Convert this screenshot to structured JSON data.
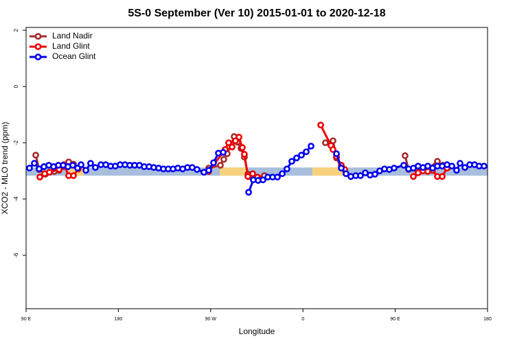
{
  "chart_data": {
    "type": "line",
    "title": "5S-0 September (Ver 10)   2015-01-01 to 2020-12-18",
    "x_label": "Longitude",
    "y_label": "XCO2 - MLO trend (ppm)",
    "xlim": [
      90,
      540
    ],
    "ylim": [
      -7.9,
      2.1
    ],
    "xticks": [
      {
        "value": 90,
        "label": "90 E"
      },
      {
        "value": 180,
        "label": "180"
      },
      {
        "value": 270,
        "label": "90 W"
      },
      {
        "value": 360,
        "label": "0"
      },
      {
        "value": 450,
        "label": "90 E"
      },
      {
        "value": 540,
        "label": "180"
      }
    ],
    "yticks": [
      2,
      0,
      -2,
      -4,
      -6
    ],
    "legend": "topleft",
    "band": {
      "ylim": [
        -3.17,
        -2.88
      ],
      "color": "#a9bedd",
      "highlight_color": "#f7d27e",
      "highlight_ranges": [
        [
          132,
          146
        ],
        [
          279,
          305
        ],
        [
          369,
          400
        ]
      ]
    },
    "series": [
      {
        "name": "Land Nadir",
        "color": "#a52a2a",
        "x": [
          99.4,
          102.7,
          108.7,
          112.8,
          117.5,
          122.2,
          126.8,
          131.5,
          136.2,
          null,
          268.1,
          279.5,
          282.8,
          286.2,
          292.9,
          296.2,
          299.6,
          302.9,
          306.3,
          311.0,
          315.7,
          322.4,
          null,
          381.9,
          389.3,
          392.7,
          397.4,
          null,
          459.6,
          463.0,
          472.3,
          481.7,
          491.1,
          496.5,
          501.2
        ],
        "values": [
          -2.44,
          -2.95,
          -3.12,
          -3.05,
          -3.02,
          -2.98,
          -2.85,
          -2.68,
          -2.76,
          null,
          -2.9,
          -2.8,
          -2.59,
          -2.39,
          -1.78,
          -1.98,
          -2.2,
          -2.51,
          -3.12,
          -3.27,
          -3.32,
          -3.17,
          null,
          -2.0,
          -1.93,
          -2.54,
          -2.88,
          null,
          -2.46,
          -2.95,
          -3.02,
          -2.93,
          -2.66,
          -2.8,
          -2.88
        ]
      },
      {
        "name": "Land Glint",
        "color": "#ee0000",
        "x": [
          103.4,
          108.1,
          112.8,
          122.2,
          126.8,
          131.5,
          136.2,
          140.9,
          null,
          268.1,
          284.2,
          287.5,
          290.9,
          294.2,
          297.6,
          300.9,
          302.9,
          306.3,
          311.0,
          315.7,
          319.0,
          null,
          377.3,
          387.3,
          389.3,
          392.7,
          397.4,
          400.7,
          null,
          467.7,
          472.3,
          477.0,
          481.7,
          486.4,
          491.1,
          495.8,
          500.5
        ],
        "values": [
          -3.22,
          -3.1,
          -3.05,
          -2.95,
          -2.78,
          -3.17,
          -3.17,
          -2.93,
          null,
          -3.02,
          -2.24,
          -2.0,
          -2.15,
          -1.93,
          -1.8,
          -2.17,
          -2.41,
          -3.2,
          -3.1,
          -3.22,
          -3.29,
          null,
          -1.37,
          -2.1,
          -2.24,
          -2.49,
          -2.8,
          -2.95,
          null,
          -3.2,
          -3.07,
          -3.0,
          -3.02,
          -2.98,
          -3.2,
          -3.2,
          -2.9
        ]
      },
      {
        "name": "Ocean Glint",
        "color": "#0000ee",
        "x": [
          93.3,
          98.0,
          102.7,
          107.4,
          112.1,
          116.8,
          121.5,
          126.2,
          130.8,
          135.5,
          140.2,
          143.6,
          148.3,
          152.9,
          157.6,
          163.0,
          167.7,
          172.4,
          177.0,
          181.7,
          186.4,
          191.1,
          195.8,
          200.5,
          205.2,
          209.9,
          214.5,
          219.2,
          223.9,
          228.6,
          233.3,
          238.0,
          242.7,
          247.4,
          252.0,
          256.7,
          263.4,
          268.1,
          272.8,
          277.5,
          282.2,
          null,
          307.0,
          311.6,
          316.3,
          321.0,
          325.7,
          330.4,
          335.1,
          339.8,
          344.4,
          349.1,
          353.8,
          358.5,
          363.2,
          367.9,
          null,
          392.7,
          397.4,
          402.0,
          406.7,
          411.4,
          416.1,
          420.8,
          425.5,
          430.2,
          434.8,
          439.5,
          444.2,
          448.9,
          458.3,
          463.0,
          467.7,
          472.3,
          477.0,
          481.7,
          486.4,
          491.1,
          495.8,
          500.5,
          505.2,
          509.8,
          513.2,
          517.9,
          522.6,
          527.3,
          531.9,
          536.6
        ],
        "values": [
          -2.9,
          -2.73,
          -2.93,
          -2.85,
          -2.8,
          -2.85,
          -2.8,
          -2.8,
          -2.85,
          -2.8,
          -2.9,
          -2.78,
          -2.98,
          -2.73,
          -2.88,
          -2.78,
          -2.78,
          -2.83,
          -2.83,
          -2.78,
          -2.78,
          -2.8,
          -2.8,
          -2.8,
          -2.85,
          -2.85,
          -2.88,
          -2.9,
          -2.93,
          -2.93,
          -2.93,
          -2.9,
          -2.93,
          -2.88,
          -2.88,
          -2.95,
          -3.05,
          -2.98,
          -2.71,
          -2.37,
          -2.34,
          null,
          -3.76,
          -3.32,
          -3.34,
          -3.32,
          -3.22,
          -3.22,
          -3.22,
          -3.1,
          -2.93,
          -2.66,
          -2.54,
          -2.44,
          -2.32,
          -2.12,
          null,
          -2.39,
          -2.9,
          -3.1,
          -3.2,
          -3.17,
          -3.17,
          -3.07,
          -3.15,
          -3.12,
          -3.0,
          -2.93,
          -2.95,
          -2.9,
          -2.8,
          -2.93,
          -2.9,
          -2.83,
          -2.88,
          -2.83,
          -2.9,
          -2.83,
          -2.83,
          -2.78,
          -2.83,
          -2.98,
          -2.73,
          -2.88,
          -2.78,
          -2.78,
          -2.83,
          -2.83
        ]
      }
    ]
  }
}
